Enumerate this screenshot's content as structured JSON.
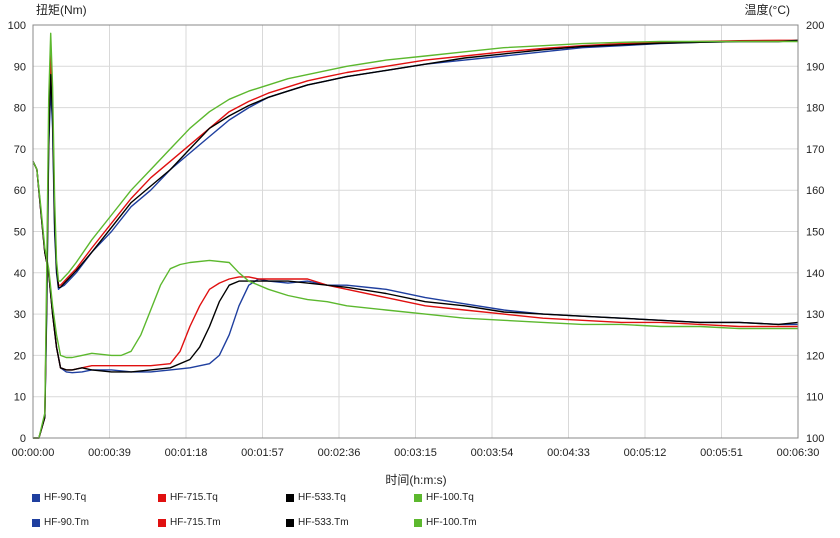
{
  "chart_data": {
    "type": "line",
    "title": "",
    "y_left_label": "扭矩(Nm)",
    "y_right_label": "温度(°C)",
    "xlabel": "时间(h:m:s)",
    "x_ticks": [
      "00:00:00",
      "00:00:39",
      "00:01:18",
      "00:01:57",
      "00:02:36",
      "00:03:15",
      "00:03:54",
      "00:04:33",
      "00:05:12",
      "00:05:51",
      "00:06:30"
    ],
    "x_range_seconds": [
      0,
      390
    ],
    "y_left_range": [
      0,
      100
    ],
    "y_left_ticks": [
      "0",
      "10",
      "20",
      "30",
      "40",
      "50",
      "60",
      "70",
      "80",
      "90",
      "100"
    ],
    "y_right_range": [
      100,
      200
    ],
    "y_right_ticks": [
      "100",
      "110",
      "120",
      "130",
      "140",
      "150",
      "160",
      "170",
      "180",
      "190",
      "200"
    ],
    "grid": true,
    "legend_position": "bottom",
    "colors": {
      "HF-90": "#1f3f9f",
      "HF-715": "#e01010",
      "HF-533": "#000000",
      "HF-100": "#5cb82e"
    },
    "series": [
      {
        "name": "HF-90.Tq",
        "color": "#1f3f9f",
        "axis": "left",
        "x": [
          0,
          2,
          4,
          6,
          8,
          10,
          12,
          14,
          17,
          20,
          25,
          30,
          40,
          50,
          60,
          70,
          80,
          90,
          95,
          100,
          105,
          110,
          115,
          120,
          130,
          140,
          150,
          160,
          180,
          200,
          220,
          240,
          260,
          280,
          300,
          320,
          340,
          360,
          380,
          390
        ],
        "y": [
          67,
          65,
          55,
          45,
          40,
          30,
          22,
          17,
          16,
          15.8,
          16,
          16.5,
          16.5,
          16,
          16,
          16.5,
          17,
          18,
          20,
          25,
          32,
          37,
          38.5,
          38,
          37.5,
          38,
          37,
          37,
          36,
          34,
          32.5,
          31,
          30,
          29.5,
          29,
          28.5,
          28,
          28,
          27.5,
          27.5
        ]
      },
      {
        "name": "HF-715.Tq",
        "color": "#e01010",
        "axis": "left",
        "x": [
          0,
          2,
          4,
          6,
          8,
          10,
          12,
          14,
          17,
          20,
          25,
          30,
          40,
          50,
          60,
          70,
          75,
          80,
          85,
          90,
          95,
          100,
          105,
          110,
          115,
          120,
          130,
          140,
          150,
          160,
          180,
          200,
          220,
          240,
          260,
          280,
          300,
          320,
          340,
          360,
          380,
          390
        ],
        "y": [
          67,
          65,
          55,
          45,
          40,
          30,
          22,
          17,
          16.5,
          16.5,
          17,
          17.5,
          17.5,
          17.5,
          17.5,
          18,
          21,
          27,
          32,
          36,
          37.5,
          38.5,
          39,
          39,
          38.5,
          38.5,
          38.5,
          38.5,
          37,
          36,
          34,
          32,
          31,
          30,
          29,
          28.5,
          28,
          28,
          27.5,
          27,
          27,
          27
        ]
      },
      {
        "name": "HF-533.Tq",
        "color": "#000000",
        "axis": "left",
        "x": [
          0,
          2,
          4,
          6,
          8,
          10,
          12,
          14,
          17,
          20,
          25,
          30,
          40,
          50,
          60,
          70,
          80,
          85,
          90,
          95,
          100,
          105,
          110,
          115,
          120,
          130,
          140,
          150,
          160,
          180,
          200,
          220,
          240,
          260,
          280,
          300,
          320,
          340,
          360,
          380,
          390
        ],
        "y": [
          67,
          65,
          55,
          45,
          40,
          30,
          22,
          17,
          16.5,
          16.5,
          17,
          16.5,
          16,
          16,
          16.5,
          17,
          19,
          22,
          27,
          33,
          37,
          38,
          38,
          38,
          38,
          38,
          37.5,
          37,
          36.5,
          35,
          33,
          32,
          30.5,
          30,
          29.5,
          29,
          28.5,
          28,
          28,
          27.5,
          28
        ]
      },
      {
        "name": "HF-100.Tq",
        "color": "#5cb82e",
        "axis": "left",
        "x": [
          0,
          2,
          4,
          6,
          8,
          10,
          12,
          14,
          17,
          20,
          25,
          30,
          40,
          45,
          50,
          55,
          60,
          65,
          70,
          75,
          80,
          90,
          100,
          105,
          110,
          120,
          130,
          140,
          150,
          160,
          180,
          200,
          220,
          240,
          260,
          280,
          300,
          320,
          340,
          360,
          380,
          390
        ],
        "y": [
          67,
          65,
          56,
          46,
          41,
          32,
          25,
          20,
          19.5,
          19.5,
          20,
          20.5,
          20,
          20,
          21,
          25,
          31,
          37,
          41,
          42,
          42.5,
          43,
          42.5,
          40,
          38,
          36,
          34.5,
          33.5,
          33,
          32,
          31,
          30,
          29,
          28.5,
          28,
          27.5,
          27.5,
          27,
          27,
          26.5,
          26.5,
          26.5
        ]
      },
      {
        "name": "HF-90.Tm",
        "color": "#1f3f9f",
        "axis": "right",
        "x": [
          0,
          3,
          6,
          7,
          8,
          9,
          10,
          11,
          12,
          13,
          14,
          16,
          18,
          22,
          30,
          40,
          50,
          60,
          70,
          80,
          90,
          100,
          110,
          120,
          130,
          140,
          150,
          160,
          180,
          200,
          220,
          240,
          260,
          280,
          300,
          320,
          340,
          360,
          380,
          390
        ],
        "y": [
          100,
          100,
          105,
          130,
          170,
          185,
          175,
          150,
          140,
          136,
          136.5,
          137,
          138,
          140,
          145,
          150,
          156,
          160,
          165,
          169,
          173,
          177,
          180,
          182.5,
          184,
          185.5,
          186.5,
          187.5,
          189,
          190.5,
          191.5,
          192.5,
          193.5,
          194.5,
          195,
          195.5,
          195.8,
          196,
          196,
          196.2
        ]
      },
      {
        "name": "HF-715.Tm",
        "color": "#e01010",
        "axis": "right",
        "x": [
          0,
          3,
          6,
          7,
          8,
          9,
          10,
          11,
          12,
          13,
          14,
          16,
          18,
          22,
          30,
          40,
          50,
          60,
          70,
          80,
          90,
          100,
          110,
          120,
          130,
          140,
          150,
          160,
          180,
          200,
          220,
          240,
          260,
          280,
          300,
          320,
          340,
          360,
          380,
          390
        ],
        "y": [
          100,
          100,
          105,
          135,
          175,
          193,
          180,
          155,
          142,
          137,
          137,
          138,
          139,
          141,
          146,
          152,
          158,
          163,
          167,
          171,
          175,
          179,
          181.5,
          183.5,
          185,
          186.5,
          187.5,
          188.5,
          190,
          191.5,
          192.5,
          193.5,
          194.3,
          195,
          195.5,
          195.8,
          196,
          196.2,
          196.3,
          196.3
        ]
      },
      {
        "name": "HF-533.Tm",
        "color": "#000000",
        "axis": "right",
        "x": [
          0,
          3,
          6,
          7,
          8,
          9,
          10,
          11,
          12,
          13,
          14,
          16,
          18,
          22,
          30,
          40,
          50,
          60,
          70,
          80,
          90,
          100,
          110,
          120,
          130,
          140,
          150,
          160,
          180,
          200,
          220,
          240,
          260,
          280,
          300,
          320,
          340,
          360,
          380,
          390
        ],
        "y": [
          100,
          100,
          105,
          132,
          172,
          188,
          178,
          152,
          141,
          136.5,
          136.5,
          137.5,
          138.5,
          140.5,
          145,
          151,
          157,
          161,
          165,
          170,
          175,
          178,
          180.5,
          182.5,
          184,
          185.5,
          186.5,
          187.5,
          189,
          190.5,
          192,
          193,
          194,
          194.8,
          195.2,
          195.6,
          195.8,
          196,
          196,
          196.3
        ]
      },
      {
        "name": "HF-100.Tm",
        "color": "#5cb82e",
        "axis": "right",
        "x": [
          0,
          3,
          6,
          7,
          8,
          9,
          10,
          11,
          12,
          13,
          14,
          16,
          18,
          22,
          30,
          40,
          50,
          60,
          70,
          80,
          90,
          100,
          110,
          120,
          130,
          140,
          150,
          160,
          180,
          200,
          220,
          240,
          260,
          280,
          300,
          320,
          340,
          360,
          380,
          390
        ],
        "y": [
          100,
          100,
          106,
          140,
          182,
          198,
          185,
          158,
          143,
          138,
          138,
          139,
          140,
          142.5,
          148,
          154,
          160,
          165,
          170,
          175,
          179,
          182,
          184,
          185.5,
          187,
          188,
          189,
          190,
          191.5,
          192.5,
          193.5,
          194.5,
          195,
          195.5,
          195.8,
          196,
          196,
          196,
          196,
          196
        ]
      }
    ]
  },
  "legend": {
    "row1": [
      {
        "label": "HF-90.Tq",
        "color": "#1f3f9f"
      },
      {
        "label": "HF-715.Tq",
        "color": "#e01010"
      },
      {
        "label": "HF-533.Tq",
        "color": "#000000"
      },
      {
        "label": "HF-100.Tq",
        "color": "#5cb82e"
      }
    ],
    "row2": [
      {
        "label": "HF-90.Tm",
        "color": "#1f3f9f"
      },
      {
        "label": "HF-715.Tm",
        "color": "#e01010"
      },
      {
        "label": "HF-533.Tm",
        "color": "#000000"
      },
      {
        "label": "HF-100.Tm",
        "color": "#5cb82e"
      }
    ]
  }
}
